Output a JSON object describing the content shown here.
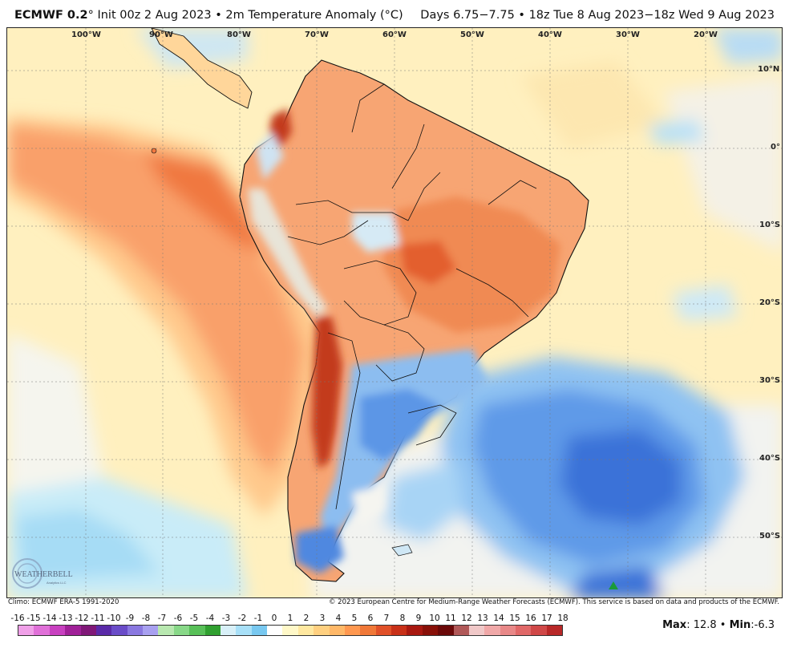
{
  "header": {
    "model": "ECMWF 0.2",
    "degree": "°",
    "init": " Init 00z 2 Aug 2023 • 2m Temperature Anomaly (°C)",
    "valid": "Days 6.75−7.75 • 18z Tue 8 Aug 2023−18z Wed 9 Aug 2023"
  },
  "axes": {
    "lon_labels": [
      "100°W",
      "90°W",
      "80°W",
      "70°W",
      "60°W",
      "50°W",
      "40°W",
      "30°W",
      "20°W"
    ],
    "lat_labels": [
      "10°N",
      "0°",
      "10°S",
      "20°S",
      "30°S",
      "40°S",
      "50°S"
    ]
  },
  "footer": {
    "climo": "Climo: ECMWF ERA-5 1991-2020",
    "copyright": "© 2023 European Centre for Medium-Range Weather Forecasts (ECMWF). This service is based on data and products of the ECMWF.",
    "max_label": "Max",
    "max_value": ": 12.8 • ",
    "min_label": "Min",
    "min_value": ":-6.3"
  },
  "colorbar": {
    "labels": [
      "-16",
      "-15",
      "-14",
      "-13",
      "-12",
      "-11",
      "-10",
      "-9",
      "-8",
      "-7",
      "-6",
      "-5",
      "-4",
      "-3",
      "-2",
      "-1",
      "0",
      "1",
      "2",
      "3",
      "4",
      "5",
      "6",
      "7",
      "8",
      "9",
      "10",
      "11",
      "12",
      "13",
      "14",
      "15",
      "16",
      "17",
      "18"
    ],
    "colors": [
      "#f0a0e8",
      "#e070d8",
      "#c840c0",
      "#a02098",
      "#801878",
      "#5a2aa8",
      "#6a4cc8",
      "#8a78e0",
      "#a8a0f0",
      "#b8e8b0",
      "#88d888",
      "#58c058",
      "#30a030",
      "#d8f0f8",
      "#a8e0f8",
      "#78c8f0",
      "#ffffff",
      "#fff8c8",
      "#ffe8a0",
      "#ffd080",
      "#ffb868",
      "#ff9850",
      "#f07838",
      "#e05028",
      "#c83018",
      "#a81810",
      "#881008",
      "#6a0808",
      "#b05858",
      "#f0c8c8",
      "#f0a8a8",
      "#e88888",
      "#e06868",
      "#d04848",
      "#b82828"
    ]
  },
  "logo": {
    "text": "WEATHERBELL",
    "subtitle": "Analytics LLC"
  },
  "legend_colors": {
    "warm": "#f58a4e",
    "hot": "#d63a1e",
    "cool": "#5b9ae8",
    "cold": "#2b62cc",
    "neutral": "#f7f4ea",
    "light_warm": "#ffe3a6"
  }
}
